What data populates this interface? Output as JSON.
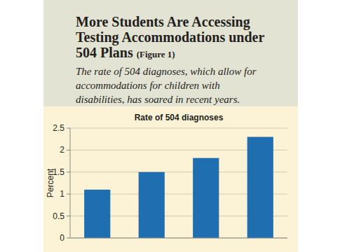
{
  "chart_data": {
    "type": "bar",
    "title": "More Students Are Accessing Testing Accommodations under 504 Plans",
    "title_note": "(Figure 1)",
    "subtitle": "The rate of 504 diagnoses, which allow for accommodations for children with disabilities, has soared in recent years.",
    "plot_title": "Rate of 504 diagnoses",
    "ylabel": "Percent",
    "categories": [
      null,
      null,
      null,
      null
    ],
    "values": [
      1.1,
      1.5,
      1.82,
      2.3
    ],
    "color": "#1f6eaf",
    "ylim": [
      0,
      2.5
    ],
    "yticks": [
      0,
      0.5,
      1,
      1.5,
      2,
      2.5
    ],
    "grid": true,
    "tick_labels": "y"
  }
}
